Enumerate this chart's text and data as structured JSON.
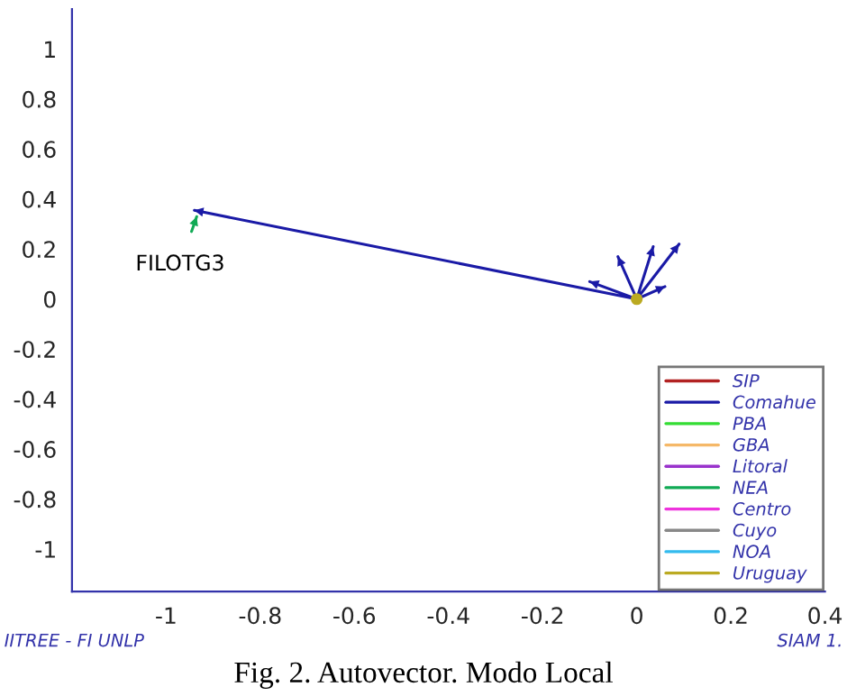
{
  "chart_data": {
    "type": "line",
    "xlim": [
      -1.2,
      0.4
    ],
    "ylim": [
      -1.17,
      1.16
    ],
    "xticks": [
      -1,
      -0.8,
      -0.6,
      -0.4,
      -0.2,
      0,
      0.2,
      0.4
    ],
    "yticks": [
      -1,
      -0.8,
      -0.6,
      -0.4,
      -0.2,
      0,
      0.2,
      0.4,
      0.6,
      0.8,
      1
    ],
    "grid": false,
    "legend": "bottom right",
    "series": [
      {
        "name": "SIP",
        "color": "#b22222"
      },
      {
        "name": "Comahue",
        "color": "#1a1aa6",
        "x": [
          0,
          -0.94,
          null,
          0,
          0.09,
          null,
          0,
          0.035,
          null,
          0,
          -0.04,
          null,
          0,
          -0.1,
          null,
          0,
          0.06
        ],
        "values": [
          0,
          0.355,
          null,
          0,
          0.22,
          null,
          0,
          0.21,
          null,
          0,
          0.17,
          null,
          0,
          0.07,
          null,
          0,
          0.05
        ]
      },
      {
        "name": "PBA",
        "color": "#33dd33"
      },
      {
        "name": "GBA",
        "color": "#f5b868"
      },
      {
        "name": "Litoral",
        "color": "#9933cc"
      },
      {
        "name": "NEA",
        "color": "#11aa55",
        "x": [
          -0.946,
          -0.935
        ],
        "values": [
          0.27,
          0.33
        ]
      },
      {
        "name": "Centro",
        "color": "#ee33dd"
      },
      {
        "name": "Cuyo",
        "color": "#888888"
      },
      {
        "name": "NOA",
        "color": "#33bbee"
      },
      {
        "name": "Uruguay",
        "color": "#bbaa22",
        "type": "scatter",
        "x": [
          0
        ],
        "values": [
          0
        ]
      }
    ],
    "annotations": [
      "FILOTG3",
      "IITREE - FI UNLP",
      "SIAM 1.",
      "Fig. 2. Autovector. Modo Local"
    ]
  }
}
